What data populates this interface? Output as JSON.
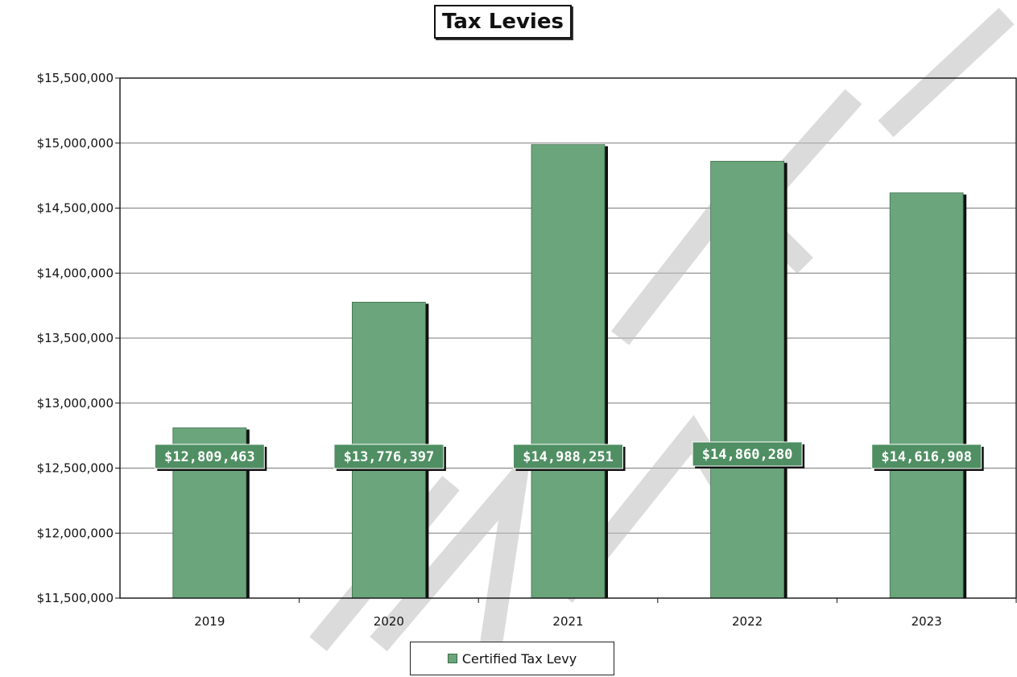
{
  "chart_data": {
    "type": "bar",
    "title": "Tax Levies",
    "categories": [
      "2019",
      "2020",
      "2021",
      "2022",
      "2023"
    ],
    "series": [
      {
        "name": "Certified Tax Levy",
        "values": [
          12809463,
          13776397,
          14988251,
          14860280,
          14616908
        ],
        "data_labels": [
          "$12,809,463",
          "$13,776,397",
          "$14,988,251",
          "$14,860,280",
          "$14,616,908"
        ]
      }
    ],
    "ylim": [
      11500000,
      15500000
    ],
    "yticks": [
      11500000,
      12000000,
      12500000,
      13000000,
      13500000,
      14000000,
      14500000,
      15000000,
      15500000
    ],
    "ytick_labels": [
      "$11,500,000",
      "$12,000,000",
      "$12,500,000",
      "$13,000,000",
      "$13,500,000",
      "$14,000,000",
      "$14,500,000",
      "$15,000,000",
      "$15,500,000"
    ],
    "grid": true,
    "legend": "bottom",
    "bar_color": "#6aa57c",
    "label_bg_color": "#4f8f63",
    "watermark": "PRELIMINARY"
  }
}
